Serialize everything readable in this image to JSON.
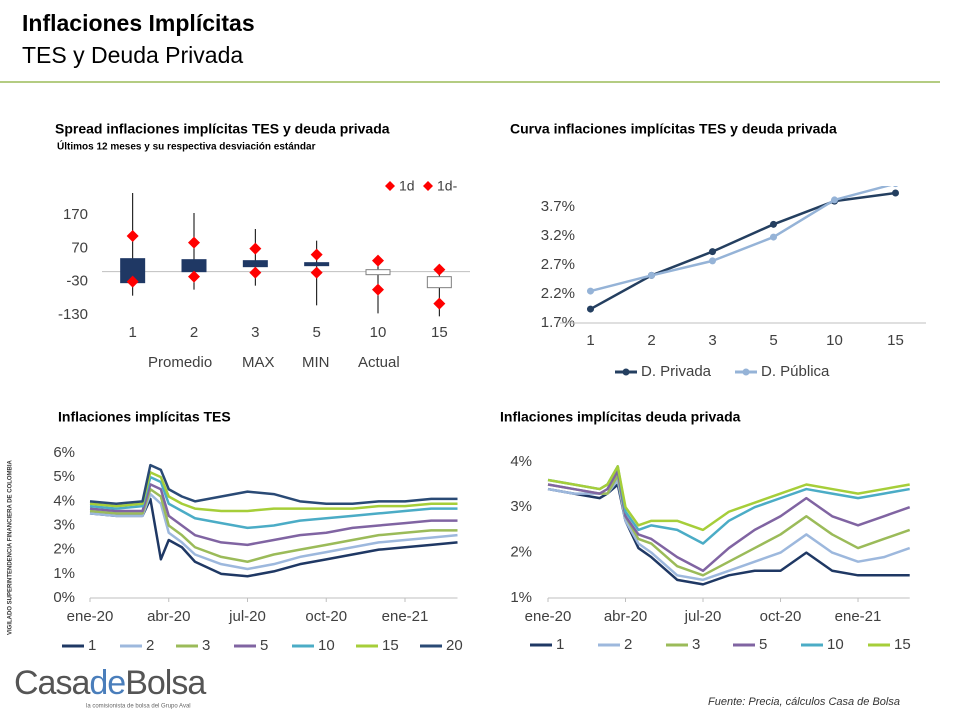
{
  "header": {
    "title": "Inflaciones Implícitas",
    "subtitle": "TES y Deuda Privada"
  },
  "chart_data": [
    {
      "type": "box",
      "title": "Spread inflaciones implícitas TES y deuda privada",
      "subtitle": "Últimos 12 meses y su respectiva desviación estándar",
      "categories": [
        "1",
        "2",
        "3",
        "5",
        "10",
        "15"
      ],
      "ylim": [
        -160,
        260
      ],
      "yticks": [
        -130,
        -30,
        70,
        170
      ],
      "box_color_up": "#1f3864",
      "box_color_down": "#ffffff",
      "series": [
        {
          "name": "Promedio",
          "color": "#1f3864",
          "values": [
            -33,
            0,
            15,
            18,
            6,
            -15
          ]
        },
        {
          "name": "MAX",
          "color": "#000000",
          "values": [
            236,
            176,
            128,
            93,
            48,
            12
          ]
        },
        {
          "name": "MIN",
          "color": "#000000",
          "values": [
            -72,
            -54,
            -42,
            -101,
            -125,
            -134
          ]
        },
        {
          "name": "Actual",
          "color": "#1f3864",
          "values": [
            39,
            36,
            33,
            27,
            -9,
            -48
          ]
        },
        {
          "name": "1d",
          "color": "#ff0000",
          "marker": "diamond",
          "values": [
            107,
            87,
            69,
            51,
            33,
            6
          ]
        },
        {
          "name": "1d-",
          "color": "#ff0000",
          "marker": "diamond",
          "values": [
            -30,
            -15,
            -3,
            -3,
            -54,
            -96
          ]
        }
      ]
    },
    {
      "type": "line",
      "title": "Curva inflaciones implícitas TES y deuda privada",
      "categories": [
        "1",
        "2",
        "3",
        "5",
        "10",
        "15"
      ],
      "ylim": [
        1.7,
        4.06
      ],
      "yticks": [
        {
          "value": 1.7,
          "label": "1.7%"
        },
        {
          "value": 2.2,
          "label": "2.2%"
        },
        {
          "value": 2.7,
          "label": "2.7%"
        },
        {
          "value": 3.2,
          "label": "3.2%"
        },
        {
          "value": 3.7,
          "label": "3.7%"
        }
      ],
      "markers": true,
      "series": [
        {
          "name": "D. Privada",
          "color": "#243f60",
          "values": [
            1.94,
            2.52,
            2.93,
            3.4,
            3.8,
            3.94
          ]
        },
        {
          "name": "D. Pública",
          "color": "#95b3d7",
          "values": [
            2.25,
            2.52,
            2.77,
            3.18,
            3.82,
            4.1
          ]
        }
      ]
    },
    {
      "type": "line",
      "title": "Inflaciones implícitas TES",
      "x": [
        0,
        1,
        2,
        2.3,
        2.7,
        3,
        3.5,
        4,
        5,
        6,
        7,
        8,
        9,
        10,
        11,
        12,
        13,
        14
      ],
      "xlim": [
        0,
        14
      ],
      "xticks": [
        {
          "value": 0,
          "label": "ene-20"
        },
        {
          "value": 3,
          "label": "abr-20"
        },
        {
          "value": 6,
          "label": "jul-20"
        },
        {
          "value": 9,
          "label": "oct-20"
        },
        {
          "value": 12,
          "label": "ene-21"
        }
      ],
      "ylim": [
        0,
        6
      ],
      "yticks": [
        {
          "value": 0,
          "label": "0%"
        },
        {
          "value": 1,
          "label": "1%"
        },
        {
          "value": 2,
          "label": "2%"
        },
        {
          "value": 3,
          "label": "3%"
        },
        {
          "value": 4,
          "label": "4%"
        },
        {
          "value": 5,
          "label": "5%"
        },
        {
          "value": 6,
          "label": "6%"
        }
      ],
      "series": [
        {
          "name": "1",
          "color": "#1f3864",
          "values": [
            3.5,
            3.4,
            3.4,
            4.1,
            1.6,
            2.4,
            2.1,
            1.5,
            1.0,
            0.9,
            1.1,
            1.4,
            1.6,
            1.8,
            2.0,
            2.1,
            2.2,
            2.3
          ]
        },
        {
          "name": "2",
          "color": "#9db8dd",
          "values": [
            3.5,
            3.4,
            3.4,
            4.3,
            3.9,
            2.7,
            2.3,
            1.8,
            1.4,
            1.2,
            1.4,
            1.7,
            1.9,
            2.1,
            2.3,
            2.4,
            2.5,
            2.6
          ]
        },
        {
          "name": "3",
          "color": "#9bbb59",
          "values": [
            3.6,
            3.5,
            3.5,
            4.5,
            4.2,
            3.0,
            2.6,
            2.1,
            1.7,
            1.5,
            1.8,
            2.0,
            2.2,
            2.4,
            2.6,
            2.7,
            2.8,
            2.8
          ]
        },
        {
          "name": "5",
          "color": "#8064a2",
          "values": [
            3.7,
            3.6,
            3.6,
            4.7,
            4.5,
            3.4,
            3.0,
            2.6,
            2.3,
            2.2,
            2.4,
            2.6,
            2.7,
            2.9,
            3.0,
            3.1,
            3.2,
            3.2
          ]
        },
        {
          "name": "10",
          "color": "#4bacc6",
          "values": [
            3.8,
            3.7,
            3.8,
            5.0,
            4.8,
            3.9,
            3.6,
            3.3,
            3.1,
            2.9,
            3.0,
            3.2,
            3.3,
            3.4,
            3.5,
            3.6,
            3.7,
            3.7
          ]
        },
        {
          "name": "15",
          "color": "#a6ce39",
          "values": [
            3.9,
            3.8,
            3.9,
            5.2,
            5.0,
            4.2,
            3.9,
            3.7,
            3.6,
            3.6,
            3.7,
            3.7,
            3.7,
            3.7,
            3.8,
            3.8,
            3.9,
            3.9
          ]
        },
        {
          "name": "20",
          "color": "#2a4a75",
          "values": [
            4.0,
            3.9,
            4.0,
            5.5,
            5.3,
            4.5,
            4.2,
            4.0,
            4.2,
            4.4,
            4.3,
            4.0,
            3.9,
            3.9,
            4.0,
            4.0,
            4.1,
            4.1
          ]
        }
      ]
    },
    {
      "type": "line",
      "title": "Inflaciones implícitas deuda privada",
      "x": [
        0,
        1,
        2,
        2.3,
        2.7,
        3,
        3.5,
        4,
        5,
        6,
        7,
        8,
        9,
        10,
        11,
        12,
        13,
        14
      ],
      "xlim": [
        0,
        14
      ],
      "xticks": [
        {
          "value": 0,
          "label": "ene-20"
        },
        {
          "value": 3,
          "label": "abr-20"
        },
        {
          "value": 6,
          "label": "jul-20"
        },
        {
          "value": 9,
          "label": "oct-20"
        },
        {
          "value": 12,
          "label": "ene-21"
        }
      ],
      "ylim": [
        1,
        4.15
      ],
      "yticks": [
        {
          "value": 1,
          "label": "1%"
        },
        {
          "value": 2,
          "label": "2%"
        },
        {
          "value": 3,
          "label": "3%"
        },
        {
          "value": 4,
          "label": "4%"
        }
      ],
      "series": [
        {
          "name": "1",
          "color": "#1f3864",
          "values": [
            3.4,
            3.3,
            3.2,
            3.3,
            3.5,
            2.7,
            2.1,
            1.9,
            1.4,
            1.3,
            1.5,
            1.6,
            1.6,
            2.0,
            1.6,
            1.5,
            1.5,
            1.5
          ]
        },
        {
          "name": "2",
          "color": "#9db8dd",
          "values": [
            3.4,
            3.3,
            3.3,
            3.3,
            3.6,
            2.7,
            2.2,
            2.0,
            1.5,
            1.4,
            1.6,
            1.8,
            2.0,
            2.4,
            2.0,
            1.8,
            1.9,
            2.1
          ]
        },
        {
          "name": "3",
          "color": "#9bbb59",
          "values": [
            3.5,
            3.4,
            3.3,
            3.3,
            3.7,
            2.8,
            2.3,
            2.2,
            1.7,
            1.5,
            1.8,
            2.1,
            2.4,
            2.8,
            2.4,
            2.1,
            2.3,
            2.5
          ]
        },
        {
          "name": "5",
          "color": "#8064a2",
          "values": [
            3.5,
            3.4,
            3.3,
            3.4,
            3.8,
            2.8,
            2.4,
            2.3,
            1.9,
            1.6,
            2.1,
            2.5,
            2.8,
            3.2,
            2.8,
            2.6,
            2.8,
            3.0
          ]
        },
        {
          "name": "10",
          "color": "#4bacc6",
          "values": [
            3.6,
            3.5,
            3.4,
            3.5,
            3.9,
            2.9,
            2.5,
            2.6,
            2.5,
            2.2,
            2.7,
            3.0,
            3.2,
            3.4,
            3.3,
            3.2,
            3.3,
            3.4
          ]
        },
        {
          "name": "15",
          "color": "#a6ce39",
          "values": [
            3.6,
            3.5,
            3.4,
            3.5,
            3.9,
            3.0,
            2.6,
            2.7,
            2.7,
            2.5,
            2.9,
            3.1,
            3.3,
            3.5,
            3.4,
            3.3,
            3.4,
            3.5
          ]
        }
      ]
    }
  ],
  "footer": {
    "source": "Fuente: Precia, cálculos Casa de Bolsa",
    "logo": [
      "Casa",
      "de",
      "Bolsa"
    ],
    "logo_tagline": "la comisionista de bolsa del Grupo Aval",
    "side_text": "VIGILADO SUPERINTENDENCIA FINANCIERA DE COLOMBIA"
  }
}
